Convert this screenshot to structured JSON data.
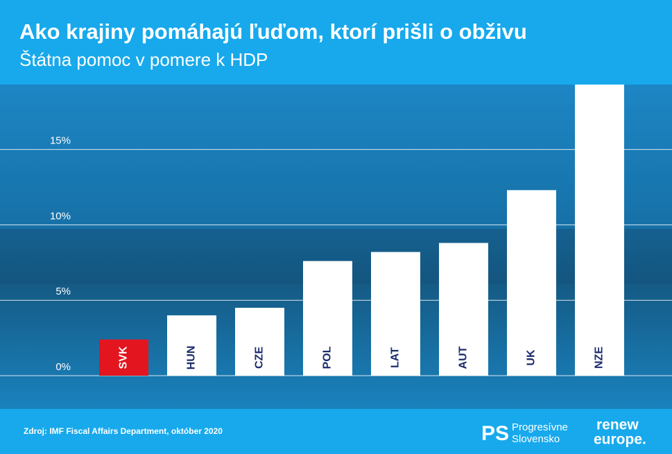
{
  "chart_data": {
    "type": "bar",
    "title": "Ako krajiny pomáhajú ľuďom, ktorí prišli o obživu",
    "subtitle": "Štátna pomoc v pomere k HDP",
    "categories": [
      "SVK",
      "HUN",
      "CZE",
      "POL",
      "LAT",
      "AUT",
      "UK",
      "NZE"
    ],
    "values": [
      2.4,
      4.0,
      4.5,
      7.6,
      8.2,
      8.8,
      12.3,
      19.3
    ],
    "colors": [
      "#e3151e",
      "#ffffff",
      "#ffffff",
      "#ffffff",
      "#ffffff",
      "#ffffff",
      "#ffffff",
      "#ffffff"
    ],
    "ylim": [
      0,
      19.3
    ],
    "yticks": [
      {
        "value": 0,
        "label": "0%"
      },
      {
        "value": 5,
        "label": "5%"
      },
      {
        "value": 10,
        "label": "10%"
      },
      {
        "value": 15,
        "label": "15%"
      }
    ],
    "grid": true
  },
  "footer": {
    "source": "Zdroj: IMF Fiscal Affairs Department, október 2020",
    "logo": "PS",
    "brand_line1": "Progresívne",
    "brand_line2": "Slovensko",
    "renew_line1": "renew",
    "renew_line2": "europe."
  }
}
